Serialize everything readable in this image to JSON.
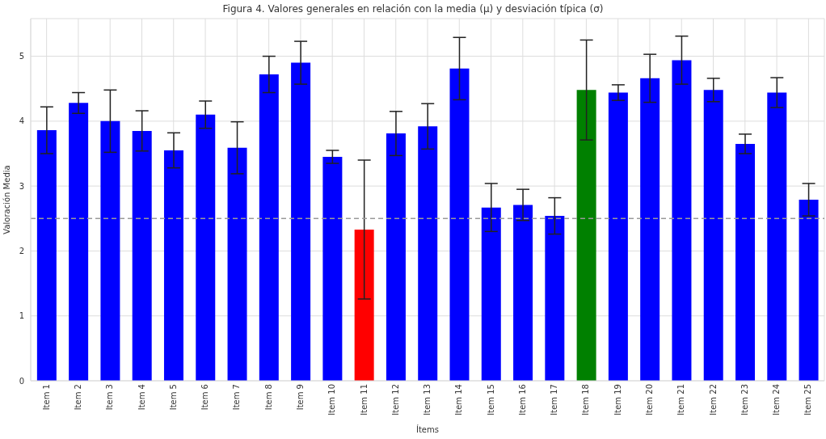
{
  "chart_data": {
    "type": "bar",
    "title": "Figura 4. Valores generales en relación con la media (μ) y desviación típica (σ)",
    "xlabel": "Ítems",
    "ylabel": "Valoración Media",
    "categories": [
      "Item 1",
      "Item 2",
      "Item 3",
      "Item 4",
      "Item 5",
      "Item 6",
      "Item 7",
      "Item 8",
      "Item 9",
      "Item 10",
      "Item 11",
      "Item 12",
      "Item 13",
      "Item 14",
      "Item 15",
      "Item 16",
      "Item 17",
      "Item 18",
      "Item 19",
      "Item 20",
      "Item 21",
      "Item 22",
      "Item 23",
      "Item 24",
      "Item 25"
    ],
    "values": [
      3.86,
      4.28,
      4.0,
      3.85,
      3.55,
      4.1,
      3.59,
      4.72,
      4.9,
      3.45,
      2.33,
      3.81,
      3.92,
      4.81,
      2.67,
      2.71,
      2.54,
      4.48,
      4.44,
      4.66,
      4.94,
      4.48,
      3.65,
      4.44,
      2.79
    ],
    "errors": [
      0.36,
      0.16,
      0.48,
      0.31,
      0.27,
      0.21,
      0.4,
      0.28,
      0.33,
      0.1,
      1.07,
      0.34,
      0.35,
      0.48,
      0.37,
      0.24,
      0.28,
      0.77,
      0.12,
      0.37,
      0.37,
      0.18,
      0.15,
      0.23,
      0.25
    ],
    "colors": [
      "#0000ff",
      "#0000ff",
      "#0000ff",
      "#0000ff",
      "#0000ff",
      "#0000ff",
      "#0000ff",
      "#0000ff",
      "#0000ff",
      "#0000ff",
      "#ff0000",
      "#0000ff",
      "#0000ff",
      "#0000ff",
      "#0000ff",
      "#0000ff",
      "#0000ff",
      "#008000",
      "#0000ff",
      "#0000ff",
      "#0000ff",
      "#0000ff",
      "#0000ff",
      "#0000ff",
      "#0000ff"
    ],
    "ylim": [
      0,
      5.58
    ],
    "yticks": [
      0,
      1,
      2,
      3,
      4,
      5
    ],
    "grid": true,
    "ref_lines": [
      {
        "axis": "y",
        "value": 2.5,
        "color": "#999999",
        "line_style": "dashed"
      }
    ]
  }
}
